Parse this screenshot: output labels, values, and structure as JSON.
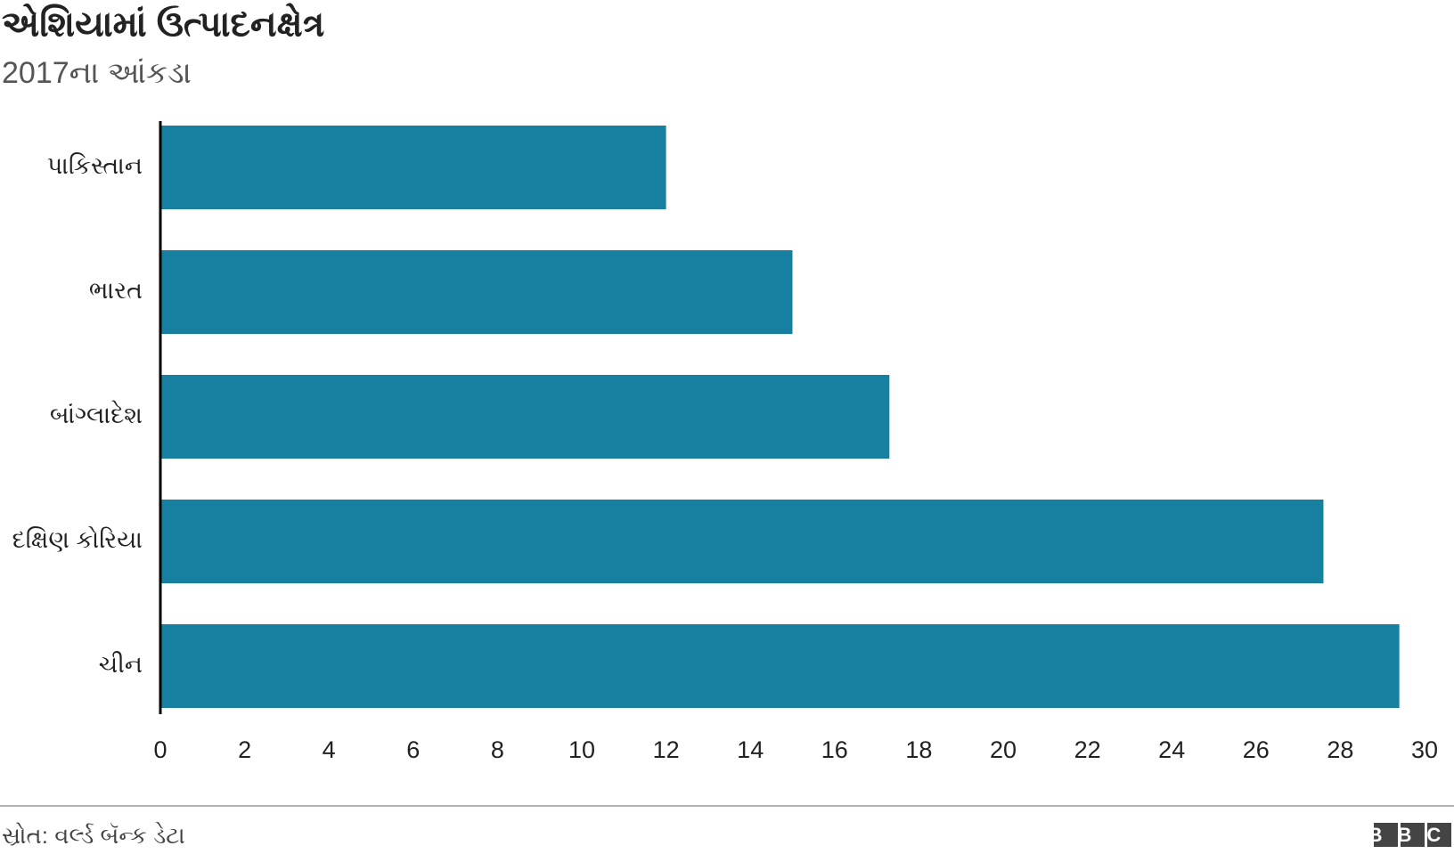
{
  "chart_data": {
    "type": "bar",
    "orientation": "horizontal",
    "title": "એશિયામાં ઉત્પાદનક્ષેત્ર",
    "subtitle": "2017ના આંકડા",
    "categories": [
      "પાકિસ્તાન",
      "ભારત",
      "બાંગ્લાદેશ",
      "દક્ષિણ કોરિયા",
      "ચીન"
    ],
    "values": [
      12.0,
      15.0,
      17.3,
      27.6,
      29.4
    ],
    "color": "#1780a1",
    "xlim": [
      0,
      30
    ],
    "xticks": [
      0,
      2,
      4,
      6,
      8,
      10,
      12,
      14,
      16,
      18,
      20,
      22,
      24,
      26,
      28,
      30
    ],
    "grid": false,
    "source": "સ્રોત: વર્લ્ડ બૅન્ક ડેટા",
    "logo": "BBC"
  }
}
